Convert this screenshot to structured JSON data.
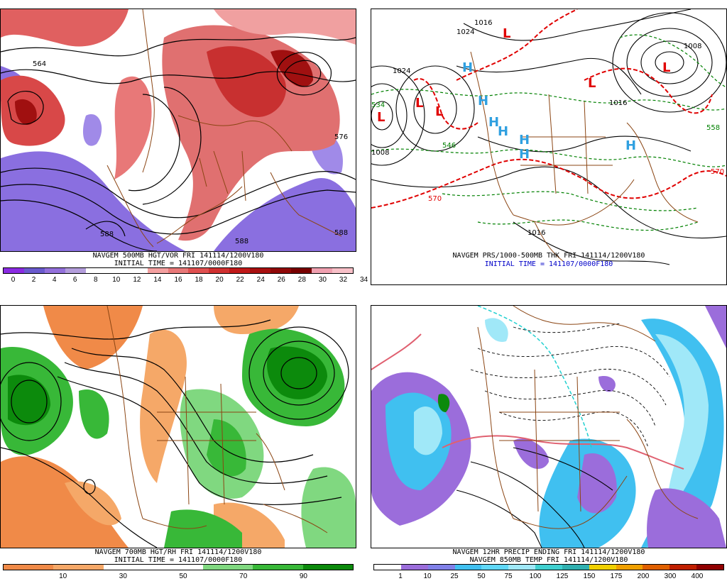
{
  "panels": {
    "vort": {
      "caption1": "NAVGEM 500MB HGT/VOR FRI 141114/1200V180",
      "caption2": "INITIAL TIME = 141107/0000F180",
      "colorbar": {
        "colors": [
          "#8a2be2",
          "#6a5acd",
          "#9370db",
          "#b39ddb",
          "#ffffff",
          "#ffffff",
          "#ffffff",
          "#f4a0a0",
          "#e87878",
          "#e05050",
          "#d03030",
          "#c01818",
          "#a81010",
          "#900808",
          "#780000",
          "#f0a0b0",
          "#f8c0c8"
        ],
        "labels": [
          "0",
          "2",
          "4",
          "6",
          "8",
          "10",
          "12",
          "14",
          "16",
          "18",
          "20",
          "22",
          "24",
          "26",
          "28",
          "30",
          "32",
          "34"
        ]
      },
      "map_labels": [
        "588",
        "576",
        "564",
        "588",
        "588"
      ]
    },
    "prs": {
      "caption1": "NAVGEM PRS/1000-500MB THK FRI 141114/1200V180",
      "caption2": "INITIAL TIME = 141107/0000F180",
      "centers": [
        "L",
        "L",
        "L",
        "L",
        "L",
        "L",
        "H",
        "H",
        "H",
        "H",
        "H",
        "H",
        "H"
      ],
      "map_labels": [
        "570",
        "570",
        "1024",
        "1016",
        "1008",
        "1016",
        "1024",
        "1016",
        "1008",
        "558",
        "534",
        "546"
      ]
    },
    "rh": {
      "caption1": "NAVGEM 700MB HGT/RH FRI 141114/1200V180",
      "caption2": "INITIAL TIME = 141107/0000F180",
      "colorbar": {
        "colors": [
          "#f08a48",
          "#f5a868",
          "#ffffff",
          "#ffffff",
          "#80d880",
          "#38b838",
          "#0c8a0c"
        ],
        "labels": [
          "10",
          "30",
          "50",
          "70",
          "90"
        ]
      }
    },
    "precip": {
      "caption1": "NAVGEM 12HR PRECIP ENDING FRI 141114/1200V180",
      "caption2": "NAVGEM 850MB TEMP FRI 141114/1200V180",
      "colorbar": {
        "colors": [
          "#ffffff",
          "#9b6ddb",
          "#8080e8",
          "#40c0f0",
          "#60d8f8",
          "#a0e8f8",
          "#40d0d0",
          "#30b0b0",
          "#f0d000",
          "#f0a000",
          "#e06000",
          "#c02000",
          "#900000"
        ],
        "labels": [
          "1",
          "10",
          "25",
          "50",
          "75",
          "100",
          "125",
          "150",
          "175",
          "200",
          "300",
          "400"
        ]
      }
    }
  },
  "colors": {
    "border": "#000000",
    "geo": "#8b4513",
    "thickness_red": "#e00000",
    "thickness_green": "#008000",
    "high_blue": "#30a0e0",
    "low_red": "#e00000"
  }
}
